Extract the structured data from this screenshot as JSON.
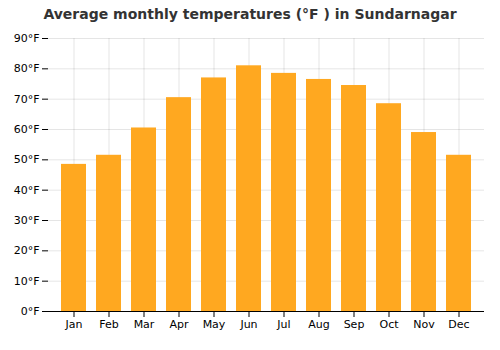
{
  "chart_data": {
    "type": "bar",
    "title": "Average monthly temperatures (°F ) in Sundarnagar",
    "categories": [
      "Jan",
      "Feb",
      "Mar",
      "Apr",
      "May",
      "Jun",
      "Jul",
      "Aug",
      "Sep",
      "Oct",
      "Nov",
      "Dec"
    ],
    "values": [
      48.5,
      51.5,
      60.5,
      70.5,
      77.0,
      81.0,
      78.5,
      76.5,
      74.5,
      68.5,
      59.0,
      51.5
    ],
    "color": "#FFA820",
    "ylim": [
      0,
      90
    ],
    "yticks": [
      {
        "value": 0,
        "label": "0°F"
      },
      {
        "value": 10,
        "label": "10°F"
      },
      {
        "value": 20,
        "label": "20°F"
      },
      {
        "value": 30,
        "label": "30°F"
      },
      {
        "value": 40,
        "label": "40°F"
      },
      {
        "value": 50,
        "label": "50°F"
      },
      {
        "value": 60,
        "label": "60°F"
      },
      {
        "value": 70,
        "label": "70°F"
      },
      {
        "value": 80,
        "label": "80°F"
      },
      {
        "value": 90,
        "label": "90°F"
      }
    ],
    "grid": true
  }
}
